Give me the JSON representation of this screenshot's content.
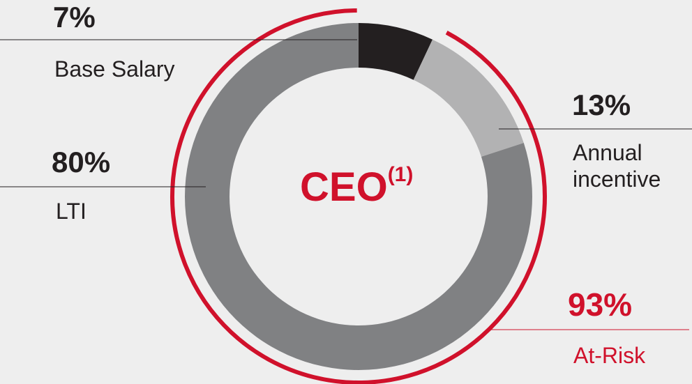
{
  "chart_data": {
    "type": "donut",
    "title": "CEO",
    "title_superscript": "(1)",
    "categories": [
      "Base Salary",
      "Annual incentive",
      "LTI"
    ],
    "values": [
      7,
      13,
      80
    ],
    "value_labels": [
      "7%",
      "13%",
      "80%"
    ],
    "colors": [
      "#231f20",
      "#b2b2b3",
      "#808183"
    ],
    "at_risk": {
      "name": "At-Risk",
      "value": 93,
      "value_label": "93%",
      "color": "#d0112b"
    }
  }
}
